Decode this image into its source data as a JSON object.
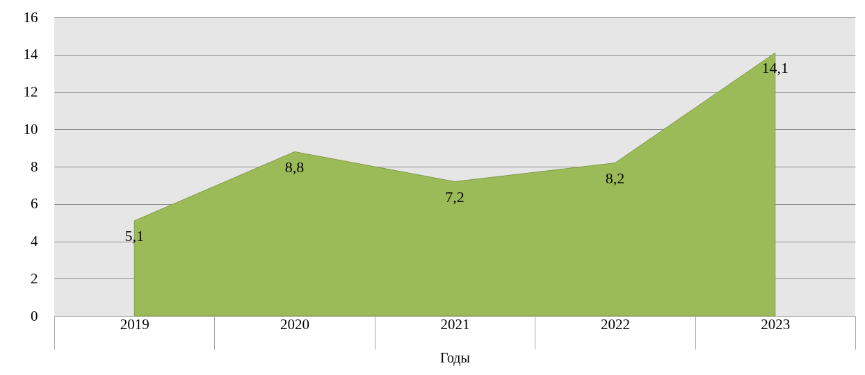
{
  "chart_data": {
    "type": "area",
    "xlabel": "Годы",
    "categories": [
      "2019",
      "2020",
      "2021",
      "2022",
      "2023"
    ],
    "values": [
      5.1,
      8.8,
      7.2,
      8.2,
      14.1
    ],
    "value_labels": [
      "5,1",
      "8,8",
      "7,2",
      "8,2",
      "14,1"
    ],
    "color": "#9bbb59",
    "ylim": [
      0,
      16
    ],
    "yticks": [
      0,
      2,
      4,
      6,
      8,
      10,
      12,
      14,
      16
    ],
    "grid": "y"
  }
}
